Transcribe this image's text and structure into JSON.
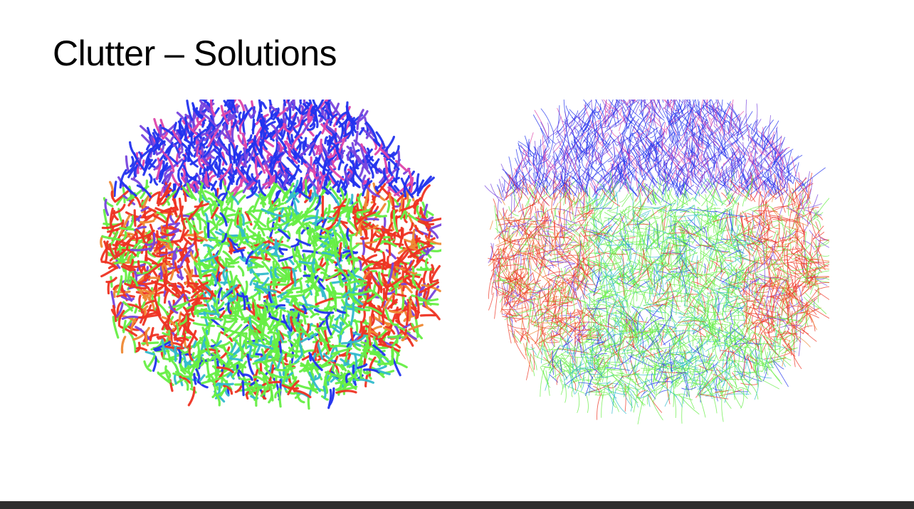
{
  "slide": {
    "title": "Clutter – Solutions"
  },
  "colors": {
    "background": "#ffffff",
    "title_text": "#000000",
    "footer_bar": "#2f2f2f",
    "fiber_palette": [
      "#2233ee",
      "#7744dd",
      "#ee3322",
      "#66ee44",
      "#33bbcc",
      "#dd44aa",
      "#ee8833"
    ]
  },
  "figures": [
    {
      "name": "tractography-tubes-render",
      "style": "thick tube rendering"
    },
    {
      "name": "tractography-lines-render",
      "style": "thin line rendering"
    }
  ]
}
